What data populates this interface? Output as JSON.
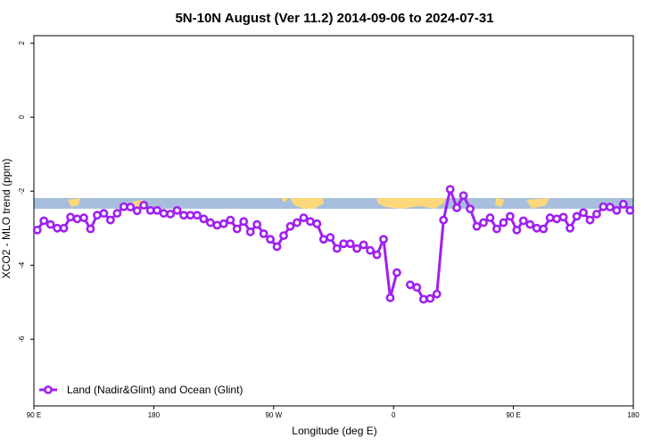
{
  "chart_data": {
    "type": "line",
    "title": "5N-10N August (Ver 11.2)   2014-09-06 to 2024-07-31",
    "xlabel": "Longitude (deg E)",
    "ylabel": "XCO2 - MLO trend (ppm)",
    "x_ticks": [
      {
        "value": 90,
        "label": "90 E"
      },
      {
        "value": 180,
        "label": "180"
      },
      {
        "value": 270,
        "label": "90 W"
      },
      {
        "value": 360,
        "label": "0"
      },
      {
        "value": 450,
        "label": "90 E"
      },
      {
        "value": 540,
        "label": "180"
      }
    ],
    "y_ticks": [
      {
        "value": 2,
        "label": "2"
      },
      {
        "value": 0,
        "label": "0"
      },
      {
        "value": -2,
        "label": "-2"
      },
      {
        "value": -4,
        "label": "-4"
      },
      {
        "value": -6,
        "label": "-6"
      }
    ],
    "xlim": [
      90,
      540
    ],
    "ylim": [
      -7.8,
      2.2
    ],
    "legend": {
      "position": "bottom-left"
    },
    "colors": {
      "series": "#a020f0",
      "ocean": "#a7bfdc",
      "land": "#fcd87a"
    },
    "series": [
      {
        "name": "Land (Nadir&Glint) and Ocean (Glint)",
        "color": "#a020f0",
        "segments": [
          {
            "x": [
              92.5,
              97.5,
              102.5,
              107.5,
              112.5,
              117.5,
              122.5,
              127.5,
              132.5,
              137.5,
              142.5,
              147.5,
              152.5,
              157.5,
              162.5,
              167.5,
              172.5,
              177.5,
              182.5,
              187.5,
              192.5,
              197.5,
              202.5,
              207.5,
              212.5,
              217.5,
              222.5,
              227.5,
              232.5,
              237.5,
              242.5,
              247.5,
              252.5,
              257.5,
              262.5,
              267.5,
              272.5,
              277.5,
              282.5,
              287.5,
              292.5,
              297.5,
              302.5,
              307.5,
              312.5,
              317.5,
              322.5,
              327.5,
              332.5,
              337.5,
              342.5,
              347.5,
              352.5,
              357.5,
              362.5
            ],
            "y": [
              -3.05,
              -2.8,
              -2.9,
              -3.0,
              -3.0,
              -2.7,
              -2.75,
              -2.72,
              -3.02,
              -2.65,
              -2.6,
              -2.78,
              -2.6,
              -2.42,
              -2.43,
              -2.53,
              -2.38,
              -2.52,
              -2.52,
              -2.6,
              -2.62,
              -2.52,
              -2.65,
              -2.65,
              -2.65,
              -2.75,
              -2.85,
              -2.92,
              -2.88,
              -2.78,
              -3.02,
              -2.82,
              -3.1,
              -2.9,
              -3.15,
              -3.3,
              -3.5,
              -3.2,
              -2.95,
              -2.85,
              -2.72,
              -2.82,
              -2.88,
              -3.3,
              -3.25,
              -3.55,
              -3.42,
              -3.42,
              -3.55,
              -3.45,
              -3.6,
              -3.72,
              -3.3,
              -4.88,
              -4.2
            ]
          },
          {
            "x": [
              372.5,
              377.5,
              382.5,
              387.5,
              392.5,
              397.5,
              402.5,
              407.5,
              412.5,
              417.5,
              422.5,
              427.5,
              432.5,
              437.5,
              442.5,
              447.5,
              452.5,
              457.5,
              462.5,
              467.5,
              472.5,
              477.5,
              482.5,
              487.5,
              492.5,
              497.5,
              502.5,
              507.5,
              512.5,
              517.5,
              522.5,
              527.5,
              532.5,
              537.5
            ],
            "y": [
              -4.53,
              -4.6,
              -4.92,
              -4.9,
              -4.78,
              -2.78,
              -1.95,
              -2.45,
              -2.12,
              -2.48,
              -2.95,
              -2.85,
              -2.72,
              -3.02,
              -2.85,
              -2.68,
              -3.05,
              -2.8,
              -2.9,
              -3.0,
              -3.02,
              -2.72,
              -2.75,
              -2.7,
              -3.0,
              -2.68,
              -2.58,
              -2.78,
              -2.62,
              -2.42,
              -2.43,
              -2.52,
              -2.35,
              -2.52
            ]
          }
        ]
      }
    ]
  }
}
